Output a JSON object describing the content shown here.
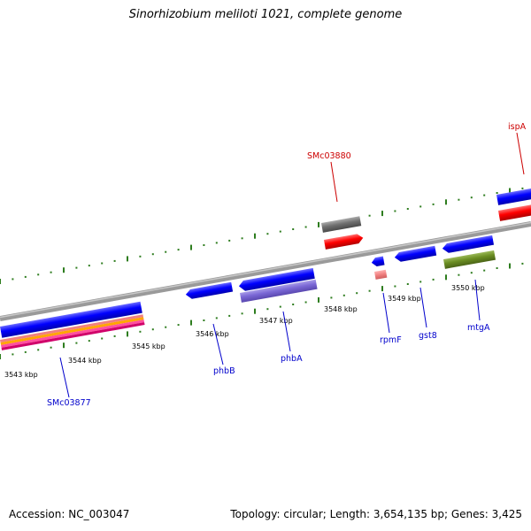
{
  "title": "Sinorhizobium meliloti 1021, complete genome",
  "footer": {
    "accession": "Accession: NC_003047",
    "summary": "Topology: circular; Length: 3,654,135 bp; Genes: 3,425"
  },
  "colors": {
    "backbone": "#8c8c8c",
    "forward_gene": "#0000ff",
    "reverse_gene": "#0000ff",
    "label_blue": "#0000cc",
    "label_red": "#cc0000",
    "tick": "#2e7d1f"
  },
  "scale_ticks": [
    {
      "label": "3543 kbp"
    },
    {
      "label": "3544 kbp"
    },
    {
      "label": "3545 kbp"
    },
    {
      "label": "3546 kbp"
    },
    {
      "label": "3547 kbp"
    },
    {
      "label": "3548 kbp"
    },
    {
      "label": "3549 kbp"
    },
    {
      "label": "3550 kbp"
    }
  ],
  "gene_labels": [
    {
      "name": "SMc03877",
      "color": "blue"
    },
    {
      "name": "phbB",
      "color": "blue"
    },
    {
      "name": "phbA",
      "color": "blue"
    },
    {
      "name": "rpmF",
      "color": "blue"
    },
    {
      "name": "gst8",
      "color": "blue"
    },
    {
      "name": "mtgA",
      "color": "blue"
    },
    {
      "name": "SMc03880",
      "color": "red"
    },
    {
      "name": "ispA",
      "color": "red"
    }
  ]
}
